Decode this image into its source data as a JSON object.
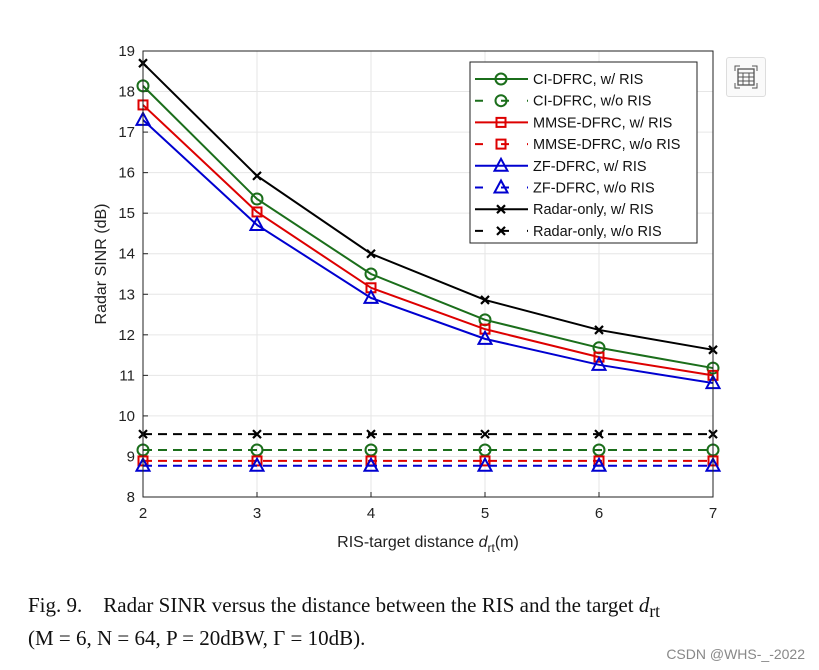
{
  "chart_data": {
    "type": "line",
    "xlabel": "RIS-target distance",
    "xlabel_symbol": "d",
    "xlabel_sub": "rt",
    "xlabel_unit": "(m)",
    "ylabel": "Radar SINR (dB)",
    "xlim": [
      2,
      7
    ],
    "ylim": [
      8,
      19
    ],
    "xticks": [
      2,
      3,
      4,
      5,
      6,
      7
    ],
    "yticks": [
      8,
      9,
      10,
      11,
      12,
      13,
      14,
      15,
      16,
      17,
      18,
      19
    ],
    "grid": true,
    "legend_position": "top-right",
    "x": [
      2,
      3,
      4,
      5,
      6,
      7
    ],
    "series": [
      {
        "name": "CI-DFRC, w/ RIS",
        "color": "#1b6e1b",
        "dash": false,
        "marker": "circle",
        "values": [
          18.14,
          15.35,
          13.5,
          12.37,
          11.68,
          11.18
        ]
      },
      {
        "name": "CI-DFRC, w/o RIS",
        "color": "#1b6e1b",
        "dash": true,
        "marker": "circle",
        "values": [
          9.16,
          9.16,
          9.16,
          9.16,
          9.16,
          9.16
        ]
      },
      {
        "name": "MMSE-DFRC, w/ RIS",
        "color": "#dd0000",
        "dash": false,
        "marker": "square",
        "values": [
          17.67,
          15.03,
          13.16,
          12.14,
          11.45,
          11.0
        ]
      },
      {
        "name": "MMSE-DFRC, w/o RIS",
        "color": "#dd0000",
        "dash": true,
        "marker": "square",
        "values": [
          8.89,
          8.89,
          8.89,
          8.89,
          8.89,
          8.89
        ]
      },
      {
        "name": "ZF-DFRC, w/ RIS",
        "color": "#0000d0",
        "dash": false,
        "marker": "triangle",
        "values": [
          17.3,
          14.71,
          12.91,
          11.9,
          11.26,
          10.81
        ]
      },
      {
        "name": "ZF-DFRC, w/o RIS",
        "color": "#0000d0",
        "dash": true,
        "marker": "triangle",
        "values": [
          8.77,
          8.77,
          8.77,
          8.77,
          8.77,
          8.77
        ]
      },
      {
        "name": "Radar-only, w/ RIS",
        "color": "#000000",
        "dash": false,
        "marker": "x",
        "values": [
          18.7,
          15.92,
          14.0,
          12.86,
          12.12,
          11.63
        ]
      },
      {
        "name": "Radar-only, w/o RIS",
        "color": "#000000",
        "dash": true,
        "marker": "x",
        "values": [
          9.55,
          9.55,
          9.55,
          9.55,
          9.55,
          9.55
        ]
      }
    ]
  },
  "caption": {
    "label": "Fig. 9.",
    "text": "Radar SINR versus the distance between the RIS and the target",
    "symbol": "d",
    "sub": "rt",
    "params": "(M = 6, N = 64, P = 20dBW, Γ = 10dB)."
  },
  "watermark": "CSDN @WHS-_-2022",
  "toolbar_icon": "table-icon"
}
